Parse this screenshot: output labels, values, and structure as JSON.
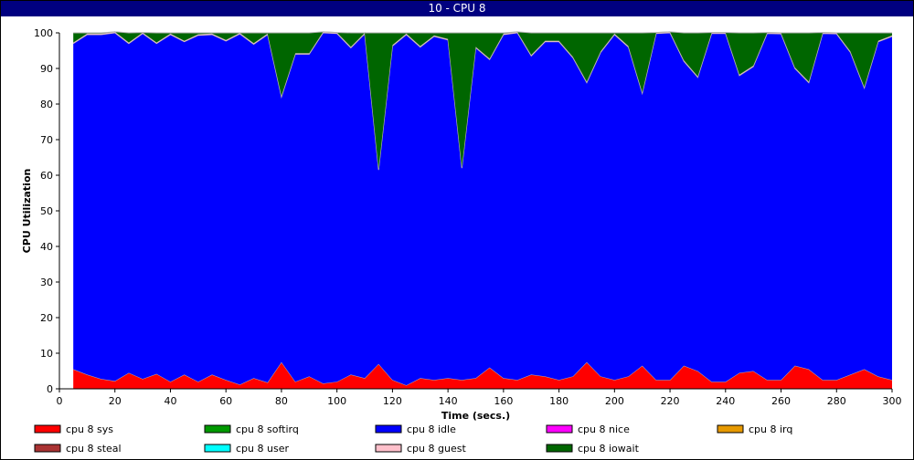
{
  "window": {
    "title": "10 - CPU 8"
  },
  "chart_data": {
    "type": "area",
    "stacked": true,
    "title": "10 - CPU 8",
    "xlabel": "Time (secs.)",
    "ylabel": "CPU Utilization",
    "xlim": [
      0,
      300
    ],
    "ylim": [
      0,
      100
    ],
    "xticks": [
      0,
      20,
      40,
      60,
      80,
      100,
      120,
      140,
      160,
      180,
      200,
      220,
      240,
      260,
      280,
      300
    ],
    "yticks": [
      0,
      10,
      20,
      30,
      40,
      50,
      60,
      70,
      80,
      90,
      100
    ],
    "grid": false,
    "legend_position": "bottom",
    "x": [
      5,
      10,
      15,
      20,
      25,
      30,
      35,
      40,
      45,
      50,
      55,
      60,
      65,
      70,
      75,
      80,
      85,
      90,
      95,
      100,
      105,
      110,
      115,
      120,
      125,
      130,
      135,
      140,
      145,
      150,
      155,
      160,
      165,
      170,
      175,
      180,
      185,
      190,
      195,
      200,
      205,
      210,
      215,
      220,
      225,
      230,
      235,
      240,
      245,
      250,
      255,
      260,
      265,
      270,
      275,
      280,
      285,
      290,
      295,
      300
    ],
    "series": [
      {
        "name": "cpu 8 sys",
        "color": "#ff0000",
        "values": [
          5.5,
          4,
          2.8,
          2.2,
          4.5,
          2.8,
          4.2,
          2,
          4,
          2,
          4,
          2.5,
          1.2,
          3,
          1.8,
          7.5,
          2,
          3.5,
          1.5,
          2,
          4,
          3,
          7,
          2.5,
          1,
          3,
          2.5,
          3,
          2.5,
          3,
          6,
          3,
          2.5,
          4,
          3.5,
          2.5,
          3.5,
          7.5,
          3.5,
          2.5,
          3.5,
          6.5,
          2.5,
          2.5,
          6.5,
          5,
          2,
          2,
          4.5,
          5,
          2.5,
          2.5,
          6.5,
          5.5,
          2.5,
          2.5,
          4,
          5.5,
          3.5,
          2.5
        ]
      },
      {
        "name": "cpu 8 softirq",
        "color": "#009900",
        "values": [
          0,
          0,
          0,
          0,
          0,
          0,
          0,
          0,
          0,
          0,
          0,
          0,
          0,
          0,
          0,
          0,
          0,
          0,
          0,
          0,
          0,
          0,
          0,
          0,
          0,
          0,
          0,
          0,
          0,
          0,
          0,
          0,
          0,
          0,
          0,
          0,
          0,
          0,
          0,
          0,
          0,
          0,
          0,
          0,
          0,
          0,
          0,
          0,
          0,
          0,
          0,
          0,
          0,
          0,
          0,
          0,
          0,
          0,
          0,
          0
        ]
      },
      {
        "name": "cpu 8 idle",
        "color": "#0000ff",
        "values": [
          91.5,
          95.5,
          96.7,
          97.8,
          92.5,
          97,
          92.8,
          97.5,
          93.5,
          97.3,
          95.5,
          95.2,
          98.5,
          93.8,
          97.7,
          74.5,
          92,
          90.5,
          98.5,
          97.8,
          91.8,
          96.7,
          54.5,
          93.8,
          98.5,
          93,
          96.5,
          95,
          59.5,
          92.8,
          86.5,
          96.5,
          97.5,
          89.5,
          94,
          95,
          89.5,
          78.5,
          91,
          97,
          92.5,
          76.5,
          97.3,
          97.5,
          85.5,
          82.5,
          97.8,
          97.8,
          83.5,
          85.5,
          97.3,
          97.2,
          83.5,
          80.5,
          97.3,
          97.2,
          90.5,
          79,
          94,
          96.5
        ]
      },
      {
        "name": "cpu 8 nice",
        "color": "#ff00ff",
        "values": [
          0,
          0,
          0,
          0,
          0,
          0,
          0,
          0,
          0,
          0,
          0,
          0,
          0,
          0,
          0,
          0,
          0,
          0,
          0,
          0,
          0,
          0,
          0,
          0,
          0,
          0,
          0,
          0,
          0,
          0,
          0,
          0,
          0,
          0,
          0,
          0,
          0,
          0,
          0,
          0,
          0,
          0,
          0,
          0,
          0,
          0,
          0,
          0,
          0,
          0,
          0,
          0,
          0,
          0,
          0,
          0,
          0,
          0,
          0,
          0
        ]
      },
      {
        "name": "cpu 8 irq",
        "color": "#e69900",
        "values": [
          0,
          0,
          0,
          0,
          0,
          0,
          0,
          0,
          0,
          0,
          0,
          0,
          0,
          0,
          0,
          0,
          0,
          0,
          0,
          0,
          0,
          0,
          0,
          0,
          0,
          0,
          0,
          0,
          0,
          0,
          0,
          0,
          0,
          0,
          0,
          0,
          0,
          0,
          0,
          0,
          0,
          0,
          0,
          0,
          0,
          0,
          0,
          0,
          0,
          0,
          0,
          0,
          0,
          0,
          0,
          0,
          0,
          0,
          0,
          0
        ]
      },
      {
        "name": "cpu 8 steal",
        "color": "#aa3333",
        "values": [
          0,
          0,
          0,
          0,
          0,
          0,
          0,
          0,
          0,
          0,
          0,
          0,
          0,
          0,
          0,
          0,
          0,
          0,
          0,
          0,
          0,
          0,
          0,
          0,
          0,
          0,
          0,
          0,
          0,
          0,
          0,
          0,
          0,
          0,
          0,
          0,
          0,
          0,
          0,
          0,
          0,
          0,
          0,
          0,
          0,
          0,
          0,
          0,
          0,
          0,
          0,
          0,
          0,
          0,
          0,
          0,
          0,
          0,
          0,
          0
        ]
      },
      {
        "name": "cpu 8 user",
        "color": "#00ffff",
        "values": [
          0,
          0,
          0,
          0,
          0,
          0,
          0,
          0,
          0,
          0,
          0,
          0,
          0,
          0,
          0,
          0,
          0,
          0,
          0,
          0,
          0,
          0,
          0,
          0,
          0,
          0,
          0,
          0,
          0,
          0,
          0,
          0,
          0,
          0,
          0,
          0,
          0,
          0,
          0,
          0,
          0,
          0,
          0,
          0,
          0,
          0,
          0,
          0,
          0,
          0,
          0,
          0,
          0,
          0,
          0,
          0,
          0,
          0,
          0,
          0
        ]
      },
      {
        "name": "cpu 8 guest",
        "color": "#ffc0cb",
        "values": [
          0.3,
          0.3,
          0.3,
          0.3,
          0.3,
          0.3,
          0.3,
          0.3,
          0.3,
          0.3,
          0.3,
          0.3,
          0.3,
          0.3,
          0.3,
          0.3,
          0.3,
          0.3,
          0.3,
          0.3,
          0.3,
          0.3,
          0.3,
          0.3,
          0.3,
          0.3,
          0.3,
          0.3,
          0.3,
          0.3,
          0.3,
          0.3,
          0.3,
          0.3,
          0.3,
          0.3,
          0.3,
          0.3,
          0.3,
          0.3,
          0.3,
          0.3,
          0.3,
          0.3,
          0.3,
          0.3,
          0.3,
          0.3,
          0.3,
          0.3,
          0.3,
          0.3,
          0.3,
          0.3,
          0.3,
          0.3,
          0.3,
          0.3,
          0.3,
          0.3
        ]
      },
      {
        "name": "cpu 8 iowait",
        "color": "#006600",
        "values": [
          2.7,
          0.2,
          0.2,
          0,
          2.7,
          0,
          2.7,
          0.2,
          2.2,
          0.4,
          0.2,
          2,
          0,
          2.9,
          0.2,
          17.7,
          5.7,
          5.7,
          0,
          0,
          3.9,
          0,
          38.2,
          3.4,
          0.2,
          3.7,
          0.7,
          1.7,
          37.7,
          3.9,
          7.2,
          0.2,
          0,
          6.2,
          2.2,
          2.2,
          6.7,
          13.7,
          5.2,
          0.2,
          3.7,
          16.7,
          0,
          0,
          7.7,
          12.2,
          0,
          0,
          11.7,
          9.2,
          0,
          0,
          9.7,
          13.7,
          0,
          0,
          5.2,
          15.2,
          2.2,
          0.7
        ]
      }
    ]
  }
}
